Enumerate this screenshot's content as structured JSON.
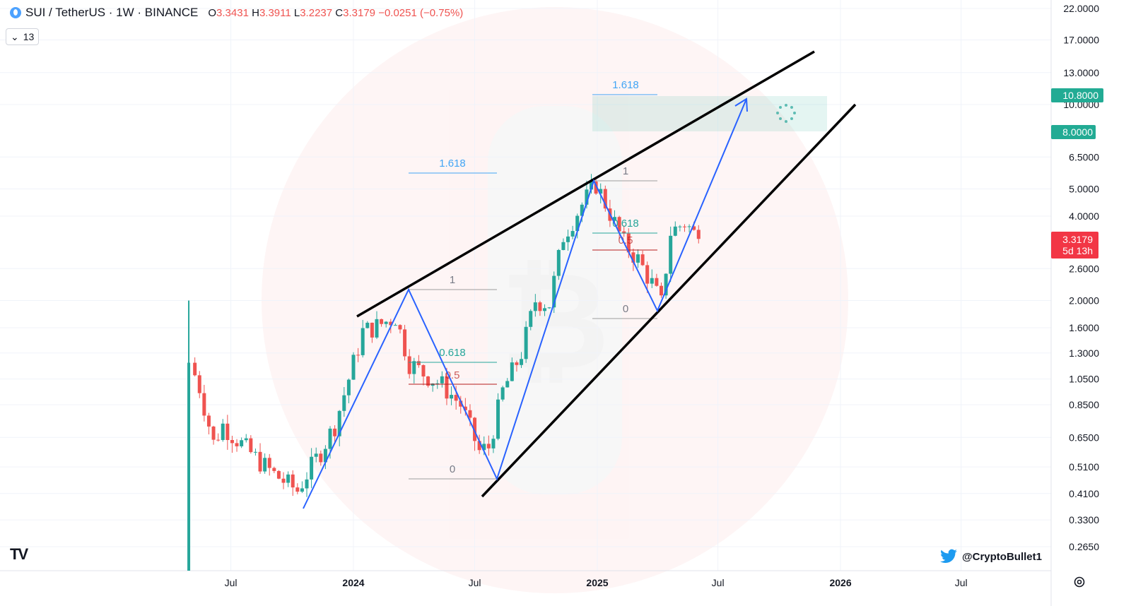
{
  "header": {
    "symbol": "SUI / TetherUS · 1W · BINANCE",
    "o_label": "O",
    "o": "3.3431",
    "h_label": "H",
    "h": "3.3911",
    "l_label": "L",
    "l": "3.2237",
    "c_label": "C",
    "c": "3.3179",
    "change": "−0.0251 (−0.75%)"
  },
  "indicator_toggle": {
    "count": "13"
  },
  "watermark_handle": "@CryptoBullet1",
  "colors": {
    "up": "#26a69a",
    "down": "#ef5350",
    "pattern": "#2962ff",
    "fib": "#42a5f5",
    "trend": "#000000",
    "tag_green": "#22ab94",
    "tag_red": "#f23645"
  },
  "price_tags": {
    "target_high": "10.8000",
    "target_low": "8.0000",
    "last_price": "3.3179",
    "countdown": "5d 13h"
  },
  "chart_data": {
    "type": "candlestick",
    "scale": "log",
    "y_ticks": [
      "22.0000",
      "17.0000",
      "13.0000",
      "10.0000",
      "6.5000",
      "5.0000",
      "4.0000",
      "2.6000",
      "2.0000",
      "1.6000",
      "1.3000",
      "1.0500",
      "0.8500",
      "0.6500",
      "0.5100",
      "0.4100",
      "0.3300",
      "0.2650"
    ],
    "x_ticks": [
      "Jul",
      "2024",
      "Jul",
      "2025",
      "Jul",
      "2026",
      "Jul"
    ],
    "close_path": [
      {
        "t": "2023-05-01",
        "v": 1.2
      },
      {
        "t": "2023-05-15",
        "v": 0.98
      },
      {
        "t": "2023-06-05",
        "v": 0.62
      },
      {
        "t": "2023-06-19",
        "v": 0.72
      },
      {
        "t": "2023-07-10",
        "v": 0.64
      },
      {
        "t": "2023-08-07",
        "v": 0.55
      },
      {
        "t": "2023-09-04",
        "v": 0.48
      },
      {
        "t": "2023-10-09",
        "v": 0.42
      },
      {
        "t": "2023-10-23",
        "v": 0.48
      },
      {
        "t": "2023-11-13",
        "v": 0.58
      },
      {
        "t": "2023-12-04",
        "v": 0.72
      },
      {
        "t": "2023-12-25",
        "v": 1.05
      },
      {
        "t": "2024-01-15",
        "v": 1.55
      },
      {
        "t": "2024-02-05",
        "v": 1.62
      },
      {
        "t": "2024-03-04",
        "v": 1.75
      },
      {
        "t": "2024-03-25",
        "v": 1.2
      },
      {
        "t": "2024-04-15",
        "v": 1.1
      },
      {
        "t": "2024-05-13",
        "v": 1.0
      },
      {
        "t": "2024-06-10",
        "v": 0.85
      },
      {
        "t": "2024-07-08",
        "v": 0.58
      },
      {
        "t": "2024-07-22",
        "v": 0.6
      },
      {
        "t": "2024-08-12",
        "v": 0.95
      },
      {
        "t": "2024-09-09",
        "v": 1.3
      },
      {
        "t": "2024-09-30",
        "v": 2.0
      },
      {
        "t": "2024-10-21",
        "v": 1.95
      },
      {
        "t": "2024-11-11",
        "v": 3.4
      },
      {
        "t": "2024-12-09",
        "v": 4.4
      },
      {
        "t": "2024-12-30",
        "v": 5.2
      },
      {
        "t": "2025-01-20",
        "v": 4.1
      },
      {
        "t": "2025-02-10",
        "v": 3.2
      },
      {
        "t": "2025-03-03",
        "v": 2.8
      },
      {
        "t": "2025-03-24",
        "v": 2.3
      },
      {
        "t": "2025-04-07",
        "v": 1.95
      },
      {
        "t": "2025-04-21",
        "v": 3.5
      },
      {
        "t": "2025-05-12",
        "v": 3.8
      },
      {
        "t": "2025-06-02",
        "v": 3.32
      }
    ],
    "annotations": {
      "fib_levels": [
        "1.618",
        "1",
        "0.618",
        "0.5",
        "0"
      ],
      "target_zone": {
        "low": 8.0,
        "high": 10.8
      },
      "last_price": 3.3179
    }
  }
}
